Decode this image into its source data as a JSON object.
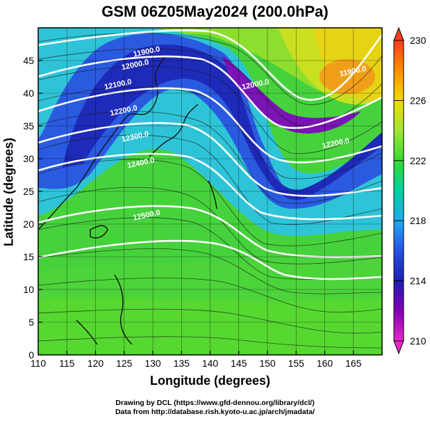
{
  "title": "GSM 06Z05May2024 (200.0hPa)",
  "xlabel": "Longitude (degrees)",
  "ylabel": "Latitude  (degrees)",
  "credits": {
    "line1": "Drawing by DCL (https://www.gfd-dennou.org/library/dcl/)",
    "line2": "Data from http://database.rish.kyoto-u.ac.jp/arch/jmadata/"
  },
  "chart_data": {
    "type": "heatmap",
    "title": "GSM 06Z05May2024 (200.0hPa)",
    "xlabel": "Longitude (degrees)",
    "ylabel": "Latitude  (degrees)",
    "xlim": [
      110,
      170
    ],
    "ylim": [
      0,
      50
    ],
    "x_ticks": [
      110,
      115,
      120,
      125,
      130,
      135,
      140,
      145,
      150,
      155,
      160,
      165
    ],
    "y_ticks": [
      0,
      5,
      10,
      15,
      20,
      25,
      30,
      35,
      40,
      45
    ],
    "grid": true,
    "colorbar": {
      "min": 210,
      "max": 230,
      "ticks": [
        "230",
        "226",
        "222",
        "218",
        "214",
        "210"
      ],
      "colors": [
        "#ff3c1e",
        "#ff8c00",
        "#f0dc00",
        "#a0e632",
        "#32dc32",
        "#00d2a0",
        "#1eaaf0",
        "#2850e6",
        "#1e1eb4",
        "#8200b4",
        "#e628c8"
      ]
    },
    "contour_labels": [
      {
        "text": "11900.0",
        "lon": 129,
        "lat": 46
      },
      {
        "text": "12000.0",
        "lon": 127,
        "lat": 44
      },
      {
        "text": "12100.0",
        "lon": 124,
        "lat": 41
      },
      {
        "text": "12200.0",
        "lon": 125,
        "lat": 37
      },
      {
        "text": "12300.0",
        "lon": 127,
        "lat": 33
      },
      {
        "text": "12400.0",
        "lon": 128,
        "lat": 29
      },
      {
        "text": "12500.0",
        "lon": 129,
        "lat": 21
      },
      {
        "text": "12000.0",
        "lon": 148,
        "lat": 41
      },
      {
        "text": "12200.0",
        "lon": 162,
        "lat": 32
      },
      {
        "text": "11900.0",
        "lon": 165,
        "lat": 43
      }
    ]
  }
}
